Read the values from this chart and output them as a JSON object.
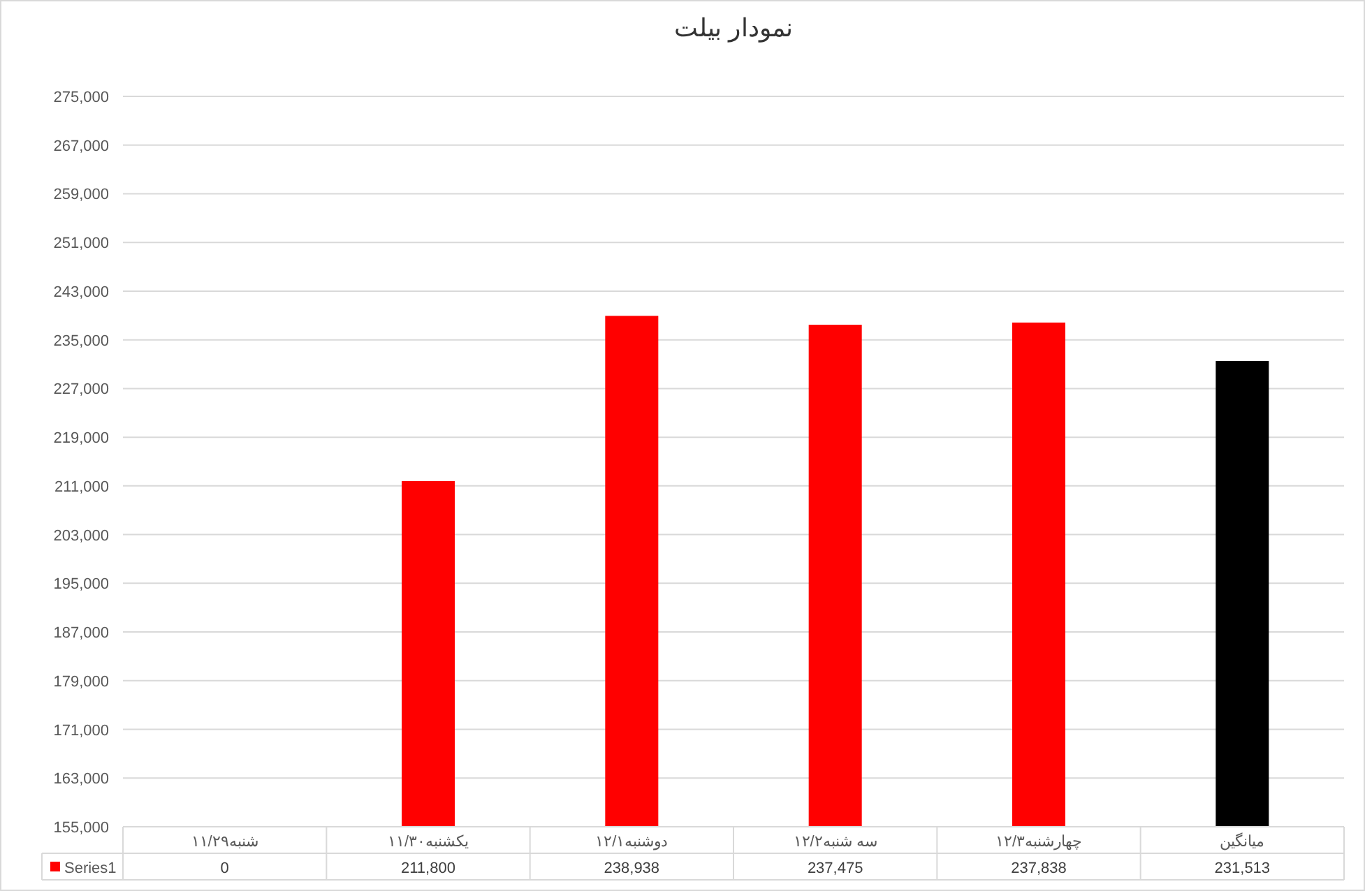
{
  "chart_data": {
    "type": "bar",
    "title": "نمودار بیلت",
    "categories": [
      "شنبه۱۱/۲۹",
      "یکشنبه۱۱/۳۰",
      "دوشنبه۱۲/۱",
      "سه شنبه۱۲/۲",
      "چهارشنبه۱۲/۳",
      "میانگین"
    ],
    "series": [
      {
        "name": "Series1",
        "color": "#ff0000",
        "colors": [
          null,
          "#ff0000",
          "#ff0000",
          "#ff0000",
          "#ff0000",
          "#000000"
        ],
        "values": [
          null,
          211800,
          238938,
          237475,
          237838,
          231513
        ],
        "value_labels": [
          "0",
          "211,800",
          "238,938",
          "237,475",
          "237,838",
          "231,513"
        ]
      }
    ],
    "ylim": [
      155000,
      275000
    ],
    "yticks": [
      {
        "value": 155000,
        "label": "155,000"
      },
      {
        "value": 163000,
        "label": "163,000"
      },
      {
        "value": 171000,
        "label": "171,000"
      },
      {
        "value": 179000,
        "label": "179,000"
      },
      {
        "value": 187000,
        "label": "187,000"
      },
      {
        "value": 195000,
        "label": "195,000"
      },
      {
        "value": 203000,
        "label": "203,000"
      },
      {
        "value": 211000,
        "label": "211,000"
      },
      {
        "value": 219000,
        "label": "219,000"
      },
      {
        "value": 227000,
        "label": "227,000"
      },
      {
        "value": 235000,
        "label": "235,000"
      },
      {
        "value": 243000,
        "label": "243,000"
      },
      {
        "value": 251000,
        "label": "251,000"
      },
      {
        "value": 259000,
        "label": "259,000"
      },
      {
        "value": 267000,
        "label": "267,000"
      },
      {
        "value": 275000,
        "label": "275,000"
      }
    ],
    "grid": "y",
    "legend": "bottom left"
  }
}
